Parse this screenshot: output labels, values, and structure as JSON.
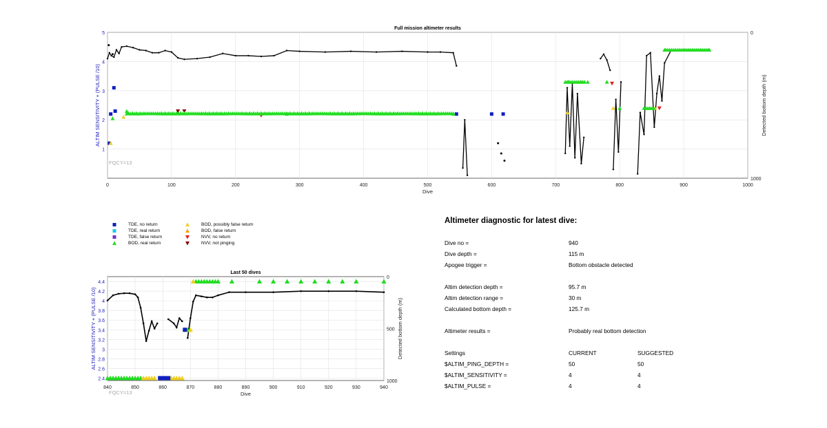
{
  "main_chart": {
    "title": "Full mission altimeter results",
    "xlabel": "Dive",
    "ylabel_left": "ALTIM SENSITIVITY + (PULSE /10)",
    "ylabel_right": "Detected bottom depth (m)",
    "xticks": [
      "0",
      "100",
      "200",
      "300",
      "400",
      "500",
      "600",
      "700",
      "800",
      "900",
      "1000"
    ],
    "yticks_left": [
      "1",
      "2",
      "3",
      "4",
      "5"
    ],
    "yticks_right": [
      "0",
      "1000"
    ],
    "fqcy": "FQCY=13"
  },
  "small_chart": {
    "title": "Last 50 dives",
    "xlabel": "Dive",
    "ylabel_left": "ALTIM SENSITIVITY + (PULSE /10)",
    "ylabel_right": "Detected bottom depth (m)",
    "xticks": [
      "840",
      "850",
      "860",
      "870",
      "880",
      "890",
      "900",
      "910",
      "920",
      "930",
      "940"
    ],
    "yticks_left": [
      "2.4",
      "2.6",
      "2.8",
      "3",
      "3.2",
      "3.4",
      "3.6",
      "3.8",
      "4",
      "4.2",
      "4.4"
    ],
    "yticks_right": [
      "0",
      "500",
      "1000"
    ],
    "fqcy": "FQCY=13"
  },
  "legend": [
    {
      "label": "TDE, no return",
      "color": "#1020c0",
      "shape": "square"
    },
    {
      "label": "TDE, real return",
      "color": "#20c8e8",
      "shape": "square"
    },
    {
      "label": "TDE, false return",
      "color": "#7a30c8",
      "shape": "square"
    },
    {
      "label": "BOD, real return",
      "color": "#22dd22",
      "shape": "triangle-up"
    },
    {
      "label": "BOD, possibly false return",
      "color": "#f0d020",
      "shape": "triangle-up"
    },
    {
      "label": "BOD, false return",
      "color": "#f5a000",
      "shape": "triangle-up"
    },
    {
      "label": "NVV, no return",
      "color": "#e02020",
      "shape": "triangle-down"
    },
    {
      "label": "NVV, not pinging",
      "color": "#800000",
      "shape": "triangle-down"
    }
  ],
  "diagnostic": {
    "title": "Altimeter diagnostic for latest dive:",
    "rows": [
      {
        "label": "Dive no =",
        "value": "940"
      },
      {
        "label": "Dive depth =",
        "value": "115 m"
      },
      {
        "label": "Apogee trigger =",
        "value": "Bottom obstacle detected"
      },
      {
        "label": "Altim detection depth =",
        "value": "95.7 m"
      },
      {
        "label": "Altim detection range =",
        "value": "30 m"
      },
      {
        "label": "Calculated bottom depth =",
        "value": "125.7 m"
      },
      {
        "label": "Altimeter results =",
        "value": "Probably real bottom detection"
      }
    ],
    "settings_header": {
      "label": "Settings",
      "current": "CURRENT",
      "suggested": "SUGGESTED"
    },
    "settings": [
      {
        "label": "$ALTIM_PING_DEPTH =",
        "current": "50",
        "suggested": "50"
      },
      {
        "label": "$ALTIM_SENSITIVITY =",
        "current": "4",
        "suggested": "4"
      },
      {
        "label": "$ALTIM_PULSE =",
        "current": "4",
        "suggested": "4"
      }
    ]
  },
  "chart_data": [
    {
      "type": "scatter",
      "title": "Full mission altimeter results",
      "xlabel": "Dive",
      "ylabel": "ALTIM SENSITIVITY + (PULSE /10)",
      "y2label": "Detected bottom depth (m)",
      "xlim": [
        0,
        1000
      ],
      "ylim": [
        0,
        5
      ],
      "y2lim": [
        1000,
        0
      ],
      "grid": true,
      "series": [
        {
          "kind": "depth-line",
          "axis": "right",
          "segments": [
            [
              [
                0,
                180
              ],
              [
                3,
                140
              ],
              [
                6,
                160
              ],
              [
                10,
                170
              ],
              [
                14,
                120
              ],
              [
                18,
                145
              ],
              [
                22,
                100
              ],
              [
                30,
                95
              ],
              [
                40,
                105
              ],
              [
                50,
                120
              ],
              [
                60,
                125
              ],
              [
                70,
                140
              ],
              [
                80,
                140
              ],
              [
                90,
                125
              ],
              [
                100,
                135
              ],
              [
                110,
                175
              ],
              [
                120,
                185
              ],
              [
                140,
                180
              ],
              [
                160,
                170
              ],
              [
                180,
                145
              ],
              [
                200,
                160
              ],
              [
                220,
                160
              ],
              [
                240,
                165
              ],
              [
                260,
                160
              ],
              [
                280,
                125
              ],
              [
                300,
                130
              ],
              [
                340,
                135
              ],
              [
                380,
                130
              ],
              [
                420,
                135
              ],
              [
                460,
                130
              ],
              [
                500,
                135
              ],
              [
                520,
                135
              ],
              [
                540,
                140
              ],
              [
                545,
                230
              ]
            ],
            [
              [
                555,
                930
              ],
              [
                558,
                600
              ],
              [
                562,
                980
              ]
            ],
            [
              [
                715,
                830
              ],
              [
                718,
                380
              ],
              [
                722,
                780
              ],
              [
                726,
                350
              ],
              [
                730,
                860
              ],
              [
                734,
                420
              ],
              [
                740,
                900
              ],
              [
                744,
                720
              ]
            ],
            [
              [
                770,
                180
              ],
              [
                775,
                150
              ],
              [
                780,
                190
              ],
              [
                785,
                260
              ]
            ],
            [
              [
                790,
                940
              ],
              [
                794,
                460
              ],
              [
                798,
                820
              ],
              [
                802,
                340
              ]
            ],
            [
              [
                828,
                970
              ],
              [
                832,
                550
              ],
              [
                838,
                700
              ],
              [
                842,
                160
              ],
              [
                848,
                140
              ],
              [
                854,
                650
              ],
              [
                858,
                420
              ],
              [
                862,
                300
              ],
              [
                866,
                470
              ],
              [
                870,
                210
              ],
              [
                880,
                125
              ],
              [
                900,
                120
              ],
              [
                920,
                120
              ],
              [
                940,
                120
              ]
            ]
          ]
        },
        {
          "kind": "depth-scatter",
          "axis": "right",
          "points": [
            [
              2,
              88
            ],
            [
              8,
              150
            ],
            [
              610,
              760
            ],
            [
              615,
              830
            ],
            [
              620,
              880
            ]
          ]
        },
        {
          "name": "TDE, no return",
          "points": [
            [
              3,
              1.2
            ],
            [
              5,
              2.2
            ],
            [
              10,
              3.1
            ],
            [
              12,
              2.3
            ],
            [
              545,
              2.2
            ],
            [
              600,
              2.2
            ],
            [
              618,
              2.2
            ]
          ]
        },
        {
          "name": "BOD, real return",
          "points": [
            [
              8,
              2.05
            ],
            [
              30,
              2.3
            ],
            [
              280,
              2.2
            ],
            [
              540,
              2.2
            ],
            [
              720,
              3.3
            ],
            [
              750,
              3.3
            ],
            [
              780,
              3.3
            ],
            [
              800,
              2.4
            ],
            [
              840,
              2.4
            ],
            [
              870,
              4.4
            ],
            [
              940,
              4.4
            ]
          ]
        },
        {
          "name": "BOD, possibly false return",
          "points": [
            [
              5,
              1.2
            ],
            [
              25,
              2.1
            ],
            [
              718,
              2.25
            ],
            [
              740,
              3.3
            ],
            [
              790,
              2.4
            ],
            [
              855,
              2.4
            ]
          ]
        },
        {
          "name": "NVV, no return",
          "points": [
            [
              240,
              2.15
            ],
            [
              788,
              3.25
            ],
            [
              862,
              2.4
            ]
          ]
        },
        {
          "name": "NVV, not pinging",
          "points": [
            [
              110,
              2.3
            ],
            [
              120,
              2.3
            ]
          ]
        }
      ]
    },
    {
      "type": "scatter",
      "title": "Last 50 dives",
      "xlabel": "Dive",
      "ylabel": "ALTIM SENSITIVITY + (PULSE /10)",
      "y2label": "Detected bottom depth (m)",
      "xlim": [
        840,
        940
      ],
      "ylim": [
        2.35,
        4.5
      ],
      "y2lim": [
        1000,
        0
      ],
      "grid": true,
      "series": [
        {
          "kind": "depth-line",
          "axis": "right",
          "segments": [
            [
              [
                840,
                230
              ],
              [
                842,
                180
              ],
              [
                844,
                165
              ],
              [
                846,
                160
              ],
              [
                848,
                160
              ],
              [
                850,
                170
              ],
              [
                851,
                200
              ],
              [
                852,
                300
              ],
              [
                853,
                450
              ],
              [
                854,
                620
              ],
              [
                855,
                520
              ],
              [
                856,
                430
              ],
              [
                857,
                500
              ],
              [
                858,
                450
              ]
            ],
            [
              [
                862,
                410
              ],
              [
                864,
                450
              ],
              [
                865,
                490
              ],
              [
                866,
                400
              ],
              [
                867,
                430
              ]
            ],
            [
              [
                869,
                590
              ],
              [
                870,
                400
              ],
              [
                871,
                240
              ],
              [
                872,
                180
              ],
              [
                874,
                190
              ],
              [
                876,
                200
              ],
              [
                878,
                200
              ],
              [
                880,
                180
              ],
              [
                884,
                150
              ],
              [
                890,
                150
              ],
              [
                900,
                150
              ],
              [
                910,
                140
              ],
              [
                920,
                140
              ],
              [
                930,
                140
              ],
              [
                940,
                150
              ]
            ]
          ]
        },
        {
          "name": "BOD, real return",
          "points": [
            [
              840,
              2.4
            ],
            [
              841,
              2.4
            ],
            [
              842,
              2.4
            ],
            [
              843,
              2.4
            ],
            [
              844,
              2.4
            ],
            [
              845,
              2.4
            ],
            [
              846,
              2.4
            ],
            [
              847,
              2.4
            ],
            [
              848,
              2.4
            ],
            [
              849,
              2.4
            ],
            [
              850,
              2.4
            ],
            [
              851,
              2.4
            ],
            [
              852,
              2.4
            ],
            [
              869,
              3.4
            ],
            [
              872,
              4.4
            ],
            [
              873,
              4.4
            ],
            [
              874,
              4.4
            ],
            [
              875,
              4.4
            ],
            [
              876,
              4.4
            ],
            [
              877,
              4.4
            ],
            [
              878,
              4.4
            ],
            [
              879,
              4.4
            ],
            [
              880,
              4.4
            ],
            [
              885,
              4.4
            ],
            [
              895,
              4.4
            ],
            [
              900,
              4.4
            ],
            [
              905,
              4.4
            ],
            [
              910,
              4.4
            ],
            [
              915,
              4.4
            ],
            [
              920,
              4.4
            ],
            [
              925,
              4.4
            ],
            [
              930,
              4.4
            ],
            [
              940,
              4.4
            ]
          ]
        },
        {
          "name": "BOD, possibly false return",
          "points": [
            [
              853,
              2.4
            ],
            [
              854,
              2.4
            ],
            [
              855,
              2.4
            ],
            [
              856,
              2.4
            ],
            [
              857,
              2.4
            ],
            [
              863,
              2.4
            ],
            [
              864,
              2.4
            ],
            [
              865,
              2.4
            ],
            [
              866,
              2.4
            ],
            [
              867,
              2.4
            ],
            [
              868,
              3.4
            ],
            [
              870,
              3.4
            ],
            [
              871,
              4.4
            ]
          ]
        },
        {
          "name": "TDE, no return",
          "points": [
            [
              859,
              2.4
            ],
            [
              860,
              2.4
            ],
            [
              861,
              2.4
            ],
            [
              862,
              2.4
            ],
            [
              868,
              3.4
            ]
          ]
        }
      ]
    }
  ]
}
